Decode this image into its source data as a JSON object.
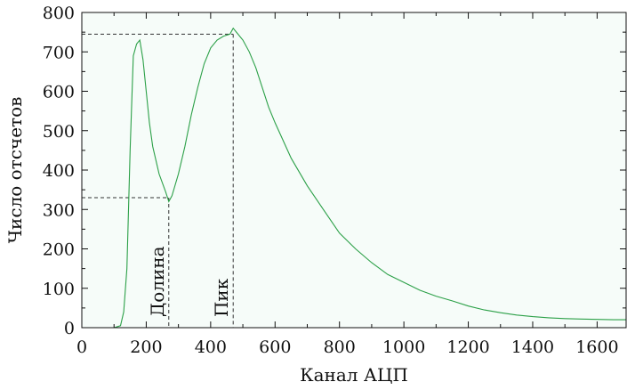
{
  "chart_data": {
    "type": "line",
    "title": "",
    "xlabel": "Канал АЦП",
    "ylabel": "Число отсчетов",
    "xlim": [
      0,
      1690
    ],
    "ylim": [
      0,
      800
    ],
    "xticks": [
      0,
      200,
      400,
      600,
      800,
      1000,
      1200,
      1400,
      1600
    ],
    "yticks": [
      0,
      100,
      200,
      300,
      400,
      500,
      600,
      700,
      800
    ],
    "x_tick_labels": [
      "0",
      "200",
      "400",
      "600",
      "800",
      "1000",
      "1200",
      "1400",
      "1600"
    ],
    "y_tick_labels": [
      "0",
      "100",
      "200",
      "300",
      "400",
      "500",
      "600",
      "700",
      "800"
    ],
    "grid": false,
    "background_color": "#f6fcf9",
    "line_color": "#2ca048",
    "series": [
      {
        "name": "",
        "x": [
          0,
          100,
          120,
          130,
          140,
          150,
          160,
          170,
          180,
          190,
          200,
          210,
          220,
          240,
          260,
          270,
          280,
          300,
          320,
          340,
          360,
          380,
          400,
          420,
          440,
          460,
          470,
          480,
          500,
          520,
          540,
          560,
          580,
          600,
          650,
          700,
          750,
          800,
          850,
          900,
          950,
          1000,
          1050,
          1100,
          1150,
          1200,
          1250,
          1300,
          1350,
          1400,
          1450,
          1500,
          1550,
          1600,
          1650,
          1690
        ],
        "y": [
          0,
          0,
          5,
          40,
          150,
          450,
          690,
          720,
          730,
          680,
          600,
          520,
          460,
          390,
          345,
          320,
          335,
          390,
          460,
          540,
          610,
          670,
          710,
          730,
          740,
          745,
          760,
          750,
          730,
          700,
          660,
          610,
          560,
          520,
          430,
          360,
          300,
          240,
          200,
          165,
          135,
          115,
          95,
          80,
          68,
          55,
          45,
          38,
          32,
          28,
          25,
          23,
          22,
          21,
          20,
          20
        ]
      }
    ],
    "annotations": [
      {
        "text": "Долина",
        "x": 270,
        "y": 330
      },
      {
        "text": "Пик",
        "x": 470,
        "y": 745
      }
    ]
  }
}
